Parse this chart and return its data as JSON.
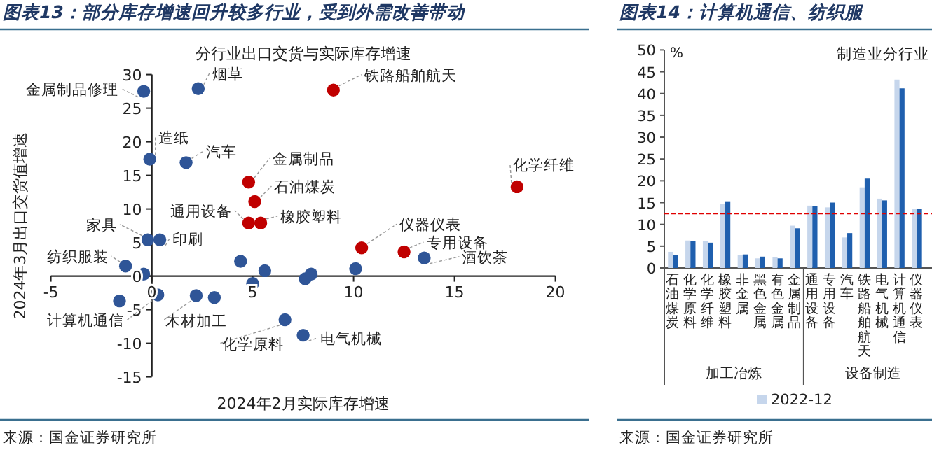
{
  "chart_data": [
    {
      "type": "scatter",
      "title": "图表13：部分库存增速回升较多行业，受到外需改善带动",
      "subtitle": "分行业出口交货与实际库存增速",
      "xlabel": "2024年2月实际库存增速",
      "ylabel": "2024年3月出口交货值增速",
      "xlim": [
        -5,
        20
      ],
      "xticks": [
        -5,
        0,
        5,
        10,
        15,
        20
      ],
      "ylim": [
        -15,
        30
      ],
      "yticks": [
        -15,
        -10,
        -5,
        0,
        5,
        10,
        15,
        20,
        25,
        30
      ],
      "marker": "circle",
      "series": [
        {
          "color": "#c00000",
          "x": [
            9.0,
            4.8,
            5.1,
            4.8,
            5.4,
            18.1,
            10.4,
            12.5
          ],
          "values": [
            27.7,
            14.0,
            11.1,
            7.9,
            7.9,
            13.3,
            4.2,
            3.6
          ]
        },
        {
          "color": "#2f5597",
          "x": [
            -0.4,
            2.3,
            -0.1,
            1.7,
            -0.2,
            0.4,
            -1.3,
            -0.4,
            4.4,
            5.6,
            5.0,
            7.6,
            7.9,
            10.1,
            13.5,
            -1.6,
            0.3,
            2.2,
            3.1,
            6.6,
            7.5
          ],
          "values": [
            27.5,
            27.9,
            17.4,
            16.9,
            5.4,
            5.4,
            1.5,
            0.3,
            2.2,
            0.8,
            -1.1,
            -0.4,
            0.3,
            1.1,
            2.7,
            -3.7,
            -2.8,
            -2.9,
            -3.2,
            -6.5,
            -8.8
          ]
        }
      ],
      "annotations": [
        {
          "text": "金属制品修理",
          "x": -0.4,
          "y": 27.5
        },
        {
          "text": "烟草",
          "x": 2.3,
          "y": 27.9
        },
        {
          "text": "铁路船舶航天",
          "x": 9.0,
          "y": 27.7
        },
        {
          "text": "造纸",
          "x": -0.1,
          "y": 17.4
        },
        {
          "text": "汽车",
          "x": 1.7,
          "y": 16.9
        },
        {
          "text": "金属制品",
          "x": 4.8,
          "y": 14.0
        },
        {
          "text": "石油煤炭",
          "x": 5.1,
          "y": 11.1
        },
        {
          "text": "通用设备",
          "x": 4.8,
          "y": 7.9
        },
        {
          "text": "橡胶塑料",
          "x": 5.4,
          "y": 7.9
        },
        {
          "text": "化学纤维",
          "x": 18.1,
          "y": 13.3
        },
        {
          "text": "家具",
          "x": -0.2,
          "y": 5.4
        },
        {
          "text": "印刷",
          "x": 0.4,
          "y": 5.4
        },
        {
          "text": "纺织服装",
          "x": -1.3,
          "y": 1.5
        },
        {
          "text": "仪器仪表",
          "x": 10.4,
          "y": 4.2
        },
        {
          "text": "专用设备",
          "x": 12.5,
          "y": 3.6
        },
        {
          "text": "酒饮茶",
          "x": 13.5,
          "y": 2.7
        },
        {
          "text": "计算机通信",
          "x": 0.3,
          "y": -2.8
        },
        {
          "text": "木材加工",
          "x": 2.2,
          "y": -2.9
        },
        {
          "text": "化学原料",
          "x": 6.6,
          "y": -6.5
        },
        {
          "text": "电气机械",
          "x": 7.5,
          "y": -8.8
        },
        "来源：国金证券研究所"
      ]
    },
    {
      "type": "bar",
      "title": "图表14：计算机通信、纺织服",
      "subtitle": "制造业分行业",
      "ylabel": "%",
      "ylim": [
        0,
        50
      ],
      "yticks": [
        0,
        5,
        10,
        15,
        20,
        25,
        30,
        35,
        40,
        45,
        50
      ],
      "legend": "bottom",
      "categories": [
        "石油煤炭",
        "化学原料",
        "化学纤维",
        "橡胶塑料",
        "非金属",
        "黑色金属",
        "有色金属",
        "金属制品",
        "通用设备",
        "专用设备",
        "汽车",
        "铁路船舶航天",
        "电气机械",
        "计算机通信",
        "仪器仪表"
      ],
      "series": [
        {
          "name": "2022-12",
          "color": "#c6d6ec",
          "values": [
            3.7,
            6.3,
            6.2,
            14.7,
            3.0,
            2.2,
            2.5,
            9.7,
            14.3,
            13.9,
            7.0,
            18.5,
            15.9,
            43.2,
            13.6
          ]
        },
        {
          "color": "#1f5fae",
          "values": [
            3.0,
            6.1,
            5.8,
            15.3,
            3.1,
            2.6,
            2.2,
            9.1,
            14.2,
            15.0,
            8.0,
            20.5,
            15.5,
            41.2,
            13.6
          ]
        }
      ],
      "ref_lines": [
        {
          "axis": "y",
          "value": 12.5,
          "color": "#e00000",
          "line_style": "dashed"
        }
      ],
      "annotations": [
        "加工冶炼",
        "设备制造",
        "来源：国金证券研究所"
      ]
    }
  ]
}
